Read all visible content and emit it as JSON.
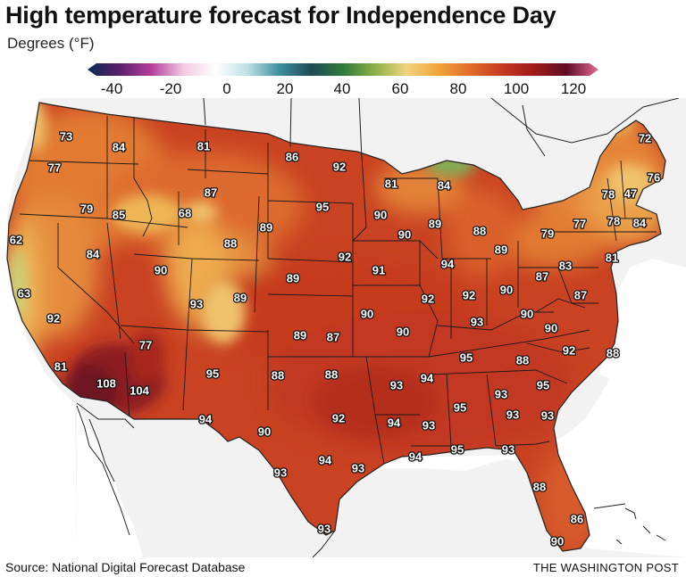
{
  "header": {
    "title": "High temperature forecast for Independence Day",
    "subtitle": "Degrees (°F)"
  },
  "scale": {
    "ticks": [
      "-40",
      "-20",
      "0",
      "20",
      "40",
      "60",
      "80",
      "100",
      "120"
    ],
    "stops": [
      "#082a54",
      "#5b1f6b",
      "#b43f9b",
      "#f2c9e3",
      "#ffffff",
      "#bfe0e6",
      "#3e8fa0",
      "#1f4b57",
      "#2f7a3a",
      "#8bb24a",
      "#f2d37c",
      "#f0a43c",
      "#e06a2a",
      "#c53920",
      "#9c1b1a",
      "#5f0c24",
      "#e06b96"
    ]
  },
  "map": {
    "colors": {
      "land_base": "#c94221",
      "hot_core": "#8c1a22",
      "warm": "#e27a33",
      "mild": "#eeaa4e",
      "cool": "#f0c26c",
      "green": "#7db35a",
      "teal": "#6ea9b2",
      "outside": "#f2f2f2",
      "water": "#ffffff"
    },
    "labels": [
      {
        "name": "seattle",
        "temp": "73"
      },
      {
        "name": "spokane",
        "temp": "84"
      },
      {
        "name": "wa-coast",
        "temp": "77"
      },
      {
        "name": "portland",
        "temp": "79"
      },
      {
        "name": "boise",
        "temp": "85"
      },
      {
        "name": "montana-west",
        "temp": "81"
      },
      {
        "name": "montana-east",
        "temp": "87"
      },
      {
        "name": "yellowstone",
        "temp": "68"
      },
      {
        "name": "oregon-coast",
        "temp": "62"
      },
      {
        "name": "nevada-north",
        "temp": "84"
      },
      {
        "name": "wyoming",
        "temp": "88"
      },
      {
        "name": "north-dakota",
        "temp": "86"
      },
      {
        "name": "nd-east",
        "temp": "92"
      },
      {
        "name": "south-dakota",
        "temp": "95"
      },
      {
        "name": "sd-west",
        "temp": "89"
      },
      {
        "name": "utah-west",
        "temp": "90"
      },
      {
        "name": "bay-area",
        "temp": "63"
      },
      {
        "name": "central-valley",
        "temp": "92"
      },
      {
        "name": "utah-south",
        "temp": "93"
      },
      {
        "name": "colorado-west",
        "temp": "89"
      },
      {
        "name": "nebraska-west",
        "temp": "89"
      },
      {
        "name": "nebraska-east",
        "temp": "92"
      },
      {
        "name": "iowa",
        "temp": "91"
      },
      {
        "name": "minneapolis",
        "temp": "90"
      },
      {
        "name": "duluth",
        "temp": "81"
      },
      {
        "name": "wisconsin-north",
        "temp": "84"
      },
      {
        "name": "wisconsin",
        "temp": "89"
      },
      {
        "name": "milwaukee",
        "temp": "90"
      },
      {
        "name": "michigan",
        "temp": "88"
      },
      {
        "name": "detroit",
        "temp": "89"
      },
      {
        "name": "chicago",
        "temp": "94"
      },
      {
        "name": "kansas-west",
        "temp": "89"
      },
      {
        "name": "kansas-east",
        "temp": "87"
      },
      {
        "name": "kansas-city",
        "temp": "90"
      },
      {
        "name": "illinois",
        "temp": "92"
      },
      {
        "name": "indiana",
        "temp": "92"
      },
      {
        "name": "ohio",
        "temp": "90"
      },
      {
        "name": "pennsylvania",
        "temp": "87"
      },
      {
        "name": "pennsylvania-east",
        "temp": "83"
      },
      {
        "name": "new-york-west",
        "temp": "79"
      },
      {
        "name": "new-york",
        "temp": "77"
      },
      {
        "name": "vermont",
        "temp": "78"
      },
      {
        "name": "new-hampshire",
        "temp": "47"
      },
      {
        "name": "maine",
        "temp": "72"
      },
      {
        "name": "maine-coast",
        "temp": "76"
      },
      {
        "name": "massachusetts",
        "temp": "78"
      },
      {
        "name": "boston",
        "temp": "84"
      },
      {
        "name": "new-jersey",
        "temp": "81"
      },
      {
        "name": "maryland",
        "temp": "87"
      },
      {
        "name": "west-virginia",
        "temp": "90"
      },
      {
        "name": "virginia",
        "temp": "90"
      },
      {
        "name": "norfolk",
        "temp": "88"
      },
      {
        "name": "kentucky",
        "temp": "93"
      },
      {
        "name": "missouri",
        "temp": "90"
      },
      {
        "name": "arizona-north",
        "temp": "77"
      },
      {
        "name": "la-coast",
        "temp": "81"
      },
      {
        "name": "imperial",
        "temp": "108"
      },
      {
        "name": "phoenix",
        "temp": "104"
      },
      {
        "name": "new-mexico",
        "temp": "95"
      },
      {
        "name": "tx-panhandle",
        "temp": "88"
      },
      {
        "name": "oklahoma",
        "temp": "88"
      },
      {
        "name": "tennessee-west",
        "temp": "94"
      },
      {
        "name": "arkansas",
        "temp": "93"
      },
      {
        "name": "tennessee",
        "temp": "95"
      },
      {
        "name": "nc-west",
        "temp": "88"
      },
      {
        "name": "nc-east",
        "temp": "92"
      },
      {
        "name": "atlanta",
        "temp": "93"
      },
      {
        "name": "sc",
        "temp": "95"
      },
      {
        "name": "el-paso",
        "temp": "94"
      },
      {
        "name": "tx-west",
        "temp": "90"
      },
      {
        "name": "dallas",
        "temp": "92"
      },
      {
        "name": "shreveport",
        "temp": "94"
      },
      {
        "name": "mississippi",
        "temp": "93"
      },
      {
        "name": "alabama",
        "temp": "95"
      },
      {
        "name": "georgia",
        "temp": "93"
      },
      {
        "name": "savannah",
        "temp": "93"
      },
      {
        "name": "big-bend",
        "temp": "93"
      },
      {
        "name": "austin",
        "temp": "94"
      },
      {
        "name": "houston",
        "temp": "93"
      },
      {
        "name": "new-orleans",
        "temp": "94"
      },
      {
        "name": "mobile",
        "temp": "95"
      },
      {
        "name": "tallahassee",
        "temp": "93"
      },
      {
        "name": "orlando",
        "temp": "88"
      },
      {
        "name": "south-texas",
        "temp": "93"
      },
      {
        "name": "fl-east",
        "temp": "86"
      },
      {
        "name": "miami",
        "temp": "90"
      }
    ]
  },
  "footer": {
    "source": "Source: National Digital Forecast Database",
    "credit": "THE WASHINGTON POST"
  }
}
